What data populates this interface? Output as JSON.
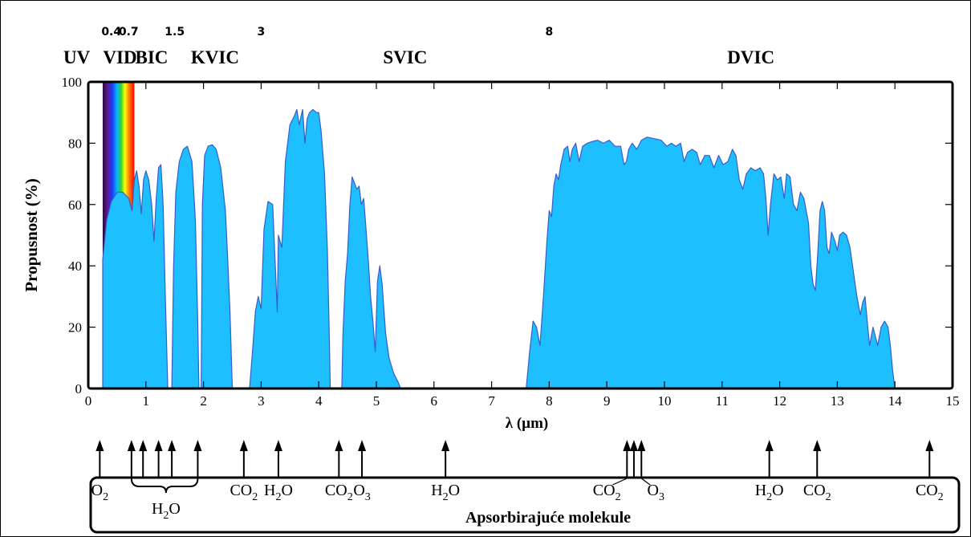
{
  "chart_data": {
    "type": "area",
    "title": "",
    "xlabel": "λ (µm)",
    "ylabel": "Propusnost (%)",
    "xlim": [
      0,
      15
    ],
    "ylim": [
      0,
      100
    ],
    "x_ticks": [
      "0",
      "1",
      "2",
      "3",
      "4",
      "5",
      "6",
      "7",
      "8",
      "9",
      "10",
      "11",
      "12",
      "13",
      "14",
      "15"
    ],
    "y_ticks": [
      "0",
      "20",
      "40",
      "60",
      "80",
      "100"
    ],
    "fill_color": "#1ebfff",
    "line_color": "#3a5cc8",
    "grid": false,
    "series": [
      {
        "values": [
          [
            0.25,
            0
          ],
          [
            0.25,
            42
          ],
          [
            0.32,
            55
          ],
          [
            0.4,
            61
          ],
          [
            0.5,
            64
          ],
          [
            0.6,
            64
          ],
          [
            0.7,
            62
          ],
          [
            0.76,
            58
          ],
          [
            0.8,
            68
          ],
          [
            0.84,
            71
          ],
          [
            0.88,
            66
          ],
          [
            0.92,
            57
          ],
          [
            0.96,
            68
          ],
          [
            1.0,
            71
          ],
          [
            1.05,
            68
          ],
          [
            1.1,
            60
          ],
          [
            1.14,
            48
          ],
          [
            1.18,
            62
          ],
          [
            1.22,
            72
          ],
          [
            1.26,
            73
          ],
          [
            1.3,
            60
          ],
          [
            1.34,
            28
          ],
          [
            1.38,
            0
          ],
          [
            1.45,
            0
          ],
          [
            1.48,
            40
          ],
          [
            1.52,
            64
          ],
          [
            1.58,
            74
          ],
          [
            1.65,
            78
          ],
          [
            1.72,
            79
          ],
          [
            1.8,
            74
          ],
          [
            1.86,
            55
          ],
          [
            1.9,
            22
          ],
          [
            1.92,
            0
          ],
          [
            1.96,
            0
          ],
          [
            1.98,
            60
          ],
          [
            2.02,
            76
          ],
          [
            2.08,
            79
          ],
          [
            2.15,
            79.5
          ],
          [
            2.22,
            78
          ],
          [
            2.3,
            72
          ],
          [
            2.38,
            58
          ],
          [
            2.42,
            42
          ],
          [
            2.46,
            25
          ],
          [
            2.5,
            0
          ],
          [
            2.8,
            0
          ],
          [
            2.85,
            12
          ],
          [
            2.9,
            25
          ],
          [
            2.95,
            30
          ],
          [
            3.0,
            26
          ],
          [
            3.05,
            52
          ],
          [
            3.12,
            61
          ],
          [
            3.2,
            60
          ],
          [
            3.25,
            38
          ],
          [
            3.28,
            25
          ],
          [
            3.3,
            50
          ],
          [
            3.36,
            46
          ],
          [
            3.42,
            74
          ],
          [
            3.5,
            86
          ],
          [
            3.58,
            89
          ],
          [
            3.62,
            91
          ],
          [
            3.66,
            86
          ],
          [
            3.72,
            91
          ],
          [
            3.76,
            80
          ],
          [
            3.8,
            88
          ],
          [
            3.84,
            90
          ],
          [
            3.9,
            91
          ],
          [
            3.96,
            90
          ],
          [
            4.0,
            90
          ],
          [
            4.04,
            84
          ],
          [
            4.1,
            70
          ],
          [
            4.15,
            45
          ],
          [
            4.18,
            20
          ],
          [
            4.2,
            0
          ],
          [
            4.4,
            0
          ],
          [
            4.42,
            18
          ],
          [
            4.46,
            35
          ],
          [
            4.5,
            44
          ],
          [
            4.54,
            60
          ],
          [
            4.58,
            69
          ],
          [
            4.62,
            67
          ],
          [
            4.66,
            65
          ],
          [
            4.7,
            66
          ],
          [
            4.74,
            60
          ],
          [
            4.78,
            62
          ],
          [
            4.82,
            52
          ],
          [
            4.86,
            42
          ],
          [
            4.9,
            30
          ],
          [
            4.94,
            22
          ],
          [
            4.98,
            12
          ],
          [
            5.02,
            35
          ],
          [
            5.06,
            40
          ],
          [
            5.1,
            34
          ],
          [
            5.16,
            18
          ],
          [
            5.22,
            10
          ],
          [
            5.3,
            5
          ],
          [
            5.38,
            2
          ],
          [
            5.42,
            0
          ],
          [
            7.6,
            0
          ],
          [
            7.66,
            12
          ],
          [
            7.72,
            22
          ],
          [
            7.78,
            20
          ],
          [
            7.84,
            14
          ],
          [
            7.9,
            30
          ],
          [
            7.96,
            48
          ],
          [
            8.0,
            58
          ],
          [
            8.04,
            56
          ],
          [
            8.08,
            66
          ],
          [
            8.12,
            70
          ],
          [
            8.16,
            68
          ],
          [
            8.2,
            73
          ],
          [
            8.26,
            78
          ],
          [
            8.32,
            79
          ],
          [
            8.36,
            74
          ],
          [
            8.4,
            78
          ],
          [
            8.46,
            80
          ],
          [
            8.52,
            74
          ],
          [
            8.58,
            79
          ],
          [
            8.66,
            80
          ],
          [
            8.74,
            80.5
          ],
          [
            8.84,
            81
          ],
          [
            8.94,
            80
          ],
          [
            9.04,
            81
          ],
          [
            9.14,
            79
          ],
          [
            9.24,
            79
          ],
          [
            9.3,
            73
          ],
          [
            9.34,
            74
          ],
          [
            9.38,
            78
          ],
          [
            9.44,
            80
          ],
          [
            9.52,
            78
          ],
          [
            9.6,
            81
          ],
          [
            9.7,
            82
          ],
          [
            9.82,
            81.5
          ],
          [
            9.94,
            81
          ],
          [
            10.04,
            79
          ],
          [
            10.12,
            80
          ],
          [
            10.2,
            79
          ],
          [
            10.28,
            80
          ],
          [
            10.34,
            74
          ],
          [
            10.4,
            77
          ],
          [
            10.48,
            78
          ],
          [
            10.56,
            77
          ],
          [
            10.62,
            73
          ],
          [
            10.7,
            76
          ],
          [
            10.78,
            76
          ],
          [
            10.86,
            72
          ],
          [
            10.94,
            76
          ],
          [
            11.02,
            73
          ],
          [
            11.1,
            74
          ],
          [
            11.18,
            78
          ],
          [
            11.24,
            76
          ],
          [
            11.3,
            68
          ],
          [
            11.36,
            65
          ],
          [
            11.42,
            70
          ],
          [
            11.5,
            72
          ],
          [
            11.58,
            71
          ],
          [
            11.66,
            72
          ],
          [
            11.72,
            70
          ],
          [
            11.76,
            62
          ],
          [
            11.8,
            50
          ],
          [
            11.84,
            60
          ],
          [
            11.9,
            70
          ],
          [
            11.96,
            68
          ],
          [
            12.02,
            69
          ],
          [
            12.08,
            62
          ],
          [
            12.12,
            70
          ],
          [
            12.18,
            69
          ],
          [
            12.24,
            60
          ],
          [
            12.3,
            58
          ],
          [
            12.36,
            64
          ],
          [
            12.42,
            62
          ],
          [
            12.46,
            58
          ],
          [
            12.5,
            54
          ],
          [
            12.54,
            40
          ],
          [
            12.58,
            34
          ],
          [
            12.62,
            32
          ],
          [
            12.66,
            44
          ],
          [
            12.7,
            58
          ],
          [
            12.74,
            61
          ],
          [
            12.78,
            58
          ],
          [
            12.82,
            46
          ],
          [
            12.86,
            44
          ],
          [
            12.9,
            51
          ],
          [
            12.96,
            48
          ],
          [
            13.0,
            45
          ],
          [
            13.04,
            50
          ],
          [
            13.1,
            51
          ],
          [
            13.16,
            50
          ],
          [
            13.22,
            46
          ],
          [
            13.28,
            38
          ],
          [
            13.34,
            30
          ],
          [
            13.4,
            24
          ],
          [
            13.44,
            28
          ],
          [
            13.48,
            30
          ],
          [
            13.52,
            22
          ],
          [
            13.56,
            14
          ],
          [
            13.62,
            20
          ],
          [
            13.66,
            17
          ],
          [
            13.7,
            14
          ],
          [
            13.76,
            20
          ],
          [
            13.82,
            22
          ],
          [
            13.88,
            20
          ],
          [
            13.92,
            14
          ],
          [
            13.96,
            6
          ],
          [
            14.0,
            0
          ]
        ]
      }
    ],
    "spectrum_bar": {
      "from": 0.25,
      "to": 0.8,
      "top": 100
    },
    "region_ticks": [
      {
        "label": "0.4",
        "x": 0.4
      },
      {
        "label": "0.7",
        "x": 0.7
      },
      {
        "label": "1.5",
        "x": 1.5
      },
      {
        "label": "3",
        "x": 3
      },
      {
        "label": "8",
        "x": 8
      }
    ],
    "regions": [
      {
        "label": "UV",
        "x": -0.2
      },
      {
        "label": "VID",
        "x": 0.55
      },
      {
        "label": "BIC",
        "x": 1.1
      },
      {
        "label": "KVIC",
        "x": 2.2
      },
      {
        "label": "SVIC",
        "x": 5.5
      },
      {
        "label": "DVIC",
        "x": 11.5
      }
    ],
    "absorbing_molecules": {
      "title": "Apsorbirajuće molekule",
      "arrow_positions": [
        0.2,
        0.75,
        0.95,
        1.22,
        1.45,
        1.9,
        2.7,
        3.3,
        4.35,
        4.75,
        6.2,
        9.35,
        9.47,
        9.6,
        11.82,
        12.65,
        14.6
      ],
      "labels": [
        {
          "base": "O",
          "sub": "2",
          "x": 0.2
        },
        {
          "base": "H",
          "sub": "2",
          "tail": "O",
          "x": 1.35
        },
        {
          "base": "CO",
          "sub": "2",
          "x": 2.7
        },
        {
          "base": "H",
          "sub": "2",
          "tail": "O",
          "x": 3.3
        },
        {
          "base": "CO",
          "sub": "2",
          "x": 4.35
        },
        {
          "base": "O",
          "sub": "3",
          "x": 4.75
        },
        {
          "base": "H",
          "sub": "2",
          "tail": "O",
          "x": 6.2
        },
        {
          "base": "CO",
          "sub": "2",
          "x": 9.35
        },
        {
          "base": "O",
          "sub": "3",
          "x": 9.6
        },
        {
          "base": "H",
          "sub": "2",
          "tail": "O",
          "x": 11.82
        },
        {
          "base": "CO",
          "sub": "2",
          "x": 12.65
        },
        {
          "base": "CO",
          "sub": "2",
          "x": 14.6
        }
      ]
    }
  }
}
